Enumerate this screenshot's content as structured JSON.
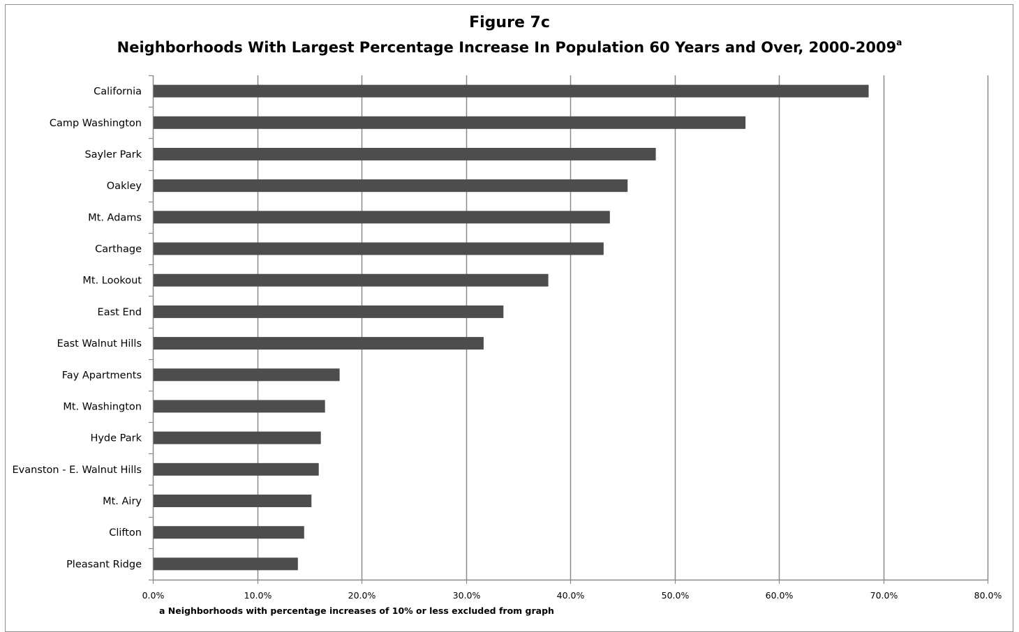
{
  "chart_data": {
    "type": "bar",
    "orientation": "horizontal",
    "title": "Figure 7c",
    "subtitle": "Neighborhoods With Largest Percentage Increase In Population 60 Years and Over, 2000-2009",
    "subtitle_superscript": "a",
    "categories": [
      "California",
      "Camp Washington",
      "Sayler Park",
      "Oakley",
      "Mt. Adams",
      "Carthage",
      "Mt. Lookout",
      "East End",
      "East Walnut Hills",
      "Fay Apartments",
      "Mt. Washington",
      "Hyde Park",
      "Evanston - E. Walnut Hills",
      "Mt. Airy",
      "Clifton",
      "Pleasant Ridge"
    ],
    "values": [
      68.6,
      56.8,
      48.2,
      45.5,
      43.8,
      43.2,
      37.9,
      33.6,
      31.7,
      17.9,
      16.5,
      16.1,
      15.9,
      15.2,
      14.5,
      13.9
    ],
    "xlim": [
      0,
      80
    ],
    "xticks": [
      "0.0%",
      "10.0%",
      "20.0%",
      "30.0%",
      "40.0%",
      "50.0%",
      "60.0%",
      "70.0%",
      "80.0%"
    ],
    "xlabel": "",
    "ylabel": "",
    "grid": "vertical",
    "bar_color": "#4d4d4d",
    "footnote": "a Neighborhoods with percentage increases of 10% or less excluded from graph"
  }
}
